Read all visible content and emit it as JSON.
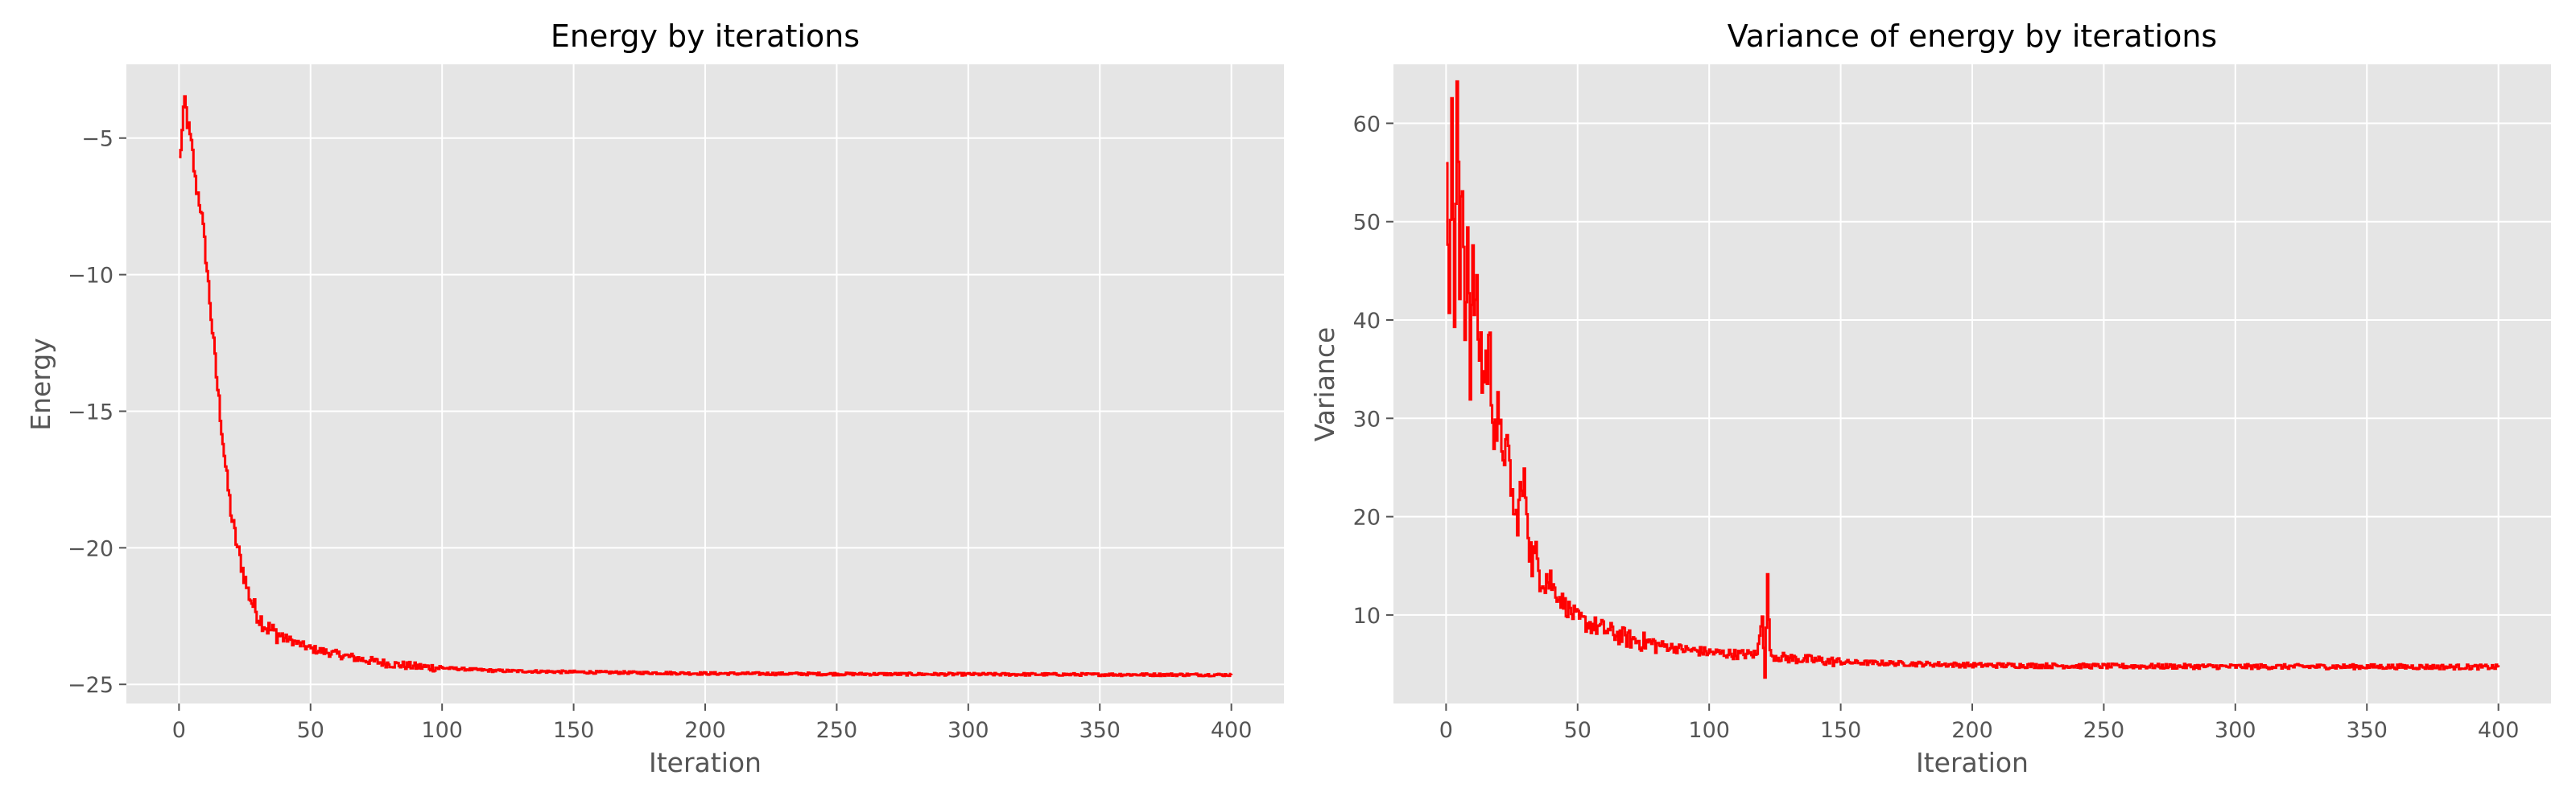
{
  "colors": {
    "panel_bg": "#e5e5e5",
    "grid": "#ffffff",
    "line": "#ff0000",
    "tick_text": "#555555"
  },
  "chart_data": [
    {
      "type": "line",
      "title": "Energy by iterations",
      "xlabel": "Iteration",
      "ylabel": "Energy",
      "xlim": [
        -20,
        420
      ],
      "ylim": [
        -25.7,
        -2.3
      ],
      "xticks": [
        0,
        50,
        100,
        150,
        200,
        250,
        300,
        350,
        400
      ],
      "yticks": [
        -25,
        -20,
        -15,
        -10,
        -5
      ],
      "xtick_labels": [
        "0",
        "50",
        "100",
        "150",
        "200",
        "250",
        "300",
        "350",
        "400"
      ],
      "ytick_labels": [
        "−25",
        "−20",
        "−15",
        "−10",
        "−5"
      ],
      "grid": true,
      "series": [
        {
          "color": "#ff0000",
          "x": [
            0,
            1,
            2,
            3,
            4,
            5,
            6,
            8,
            10,
            12,
            14,
            16,
            18,
            20,
            22,
            24,
            26,
            28,
            30,
            33,
            36,
            40,
            45,
            50,
            55,
            60,
            65,
            70,
            80,
            90,
            100,
            120,
            150,
            200,
            250,
            300,
            350,
            400
          ],
          "y": [
            -5.8,
            -4.8,
            -3.6,
            -4.4,
            -5.0,
            -5.6,
            -6.6,
            -7.5,
            -9.3,
            -11.5,
            -13.7,
            -15.6,
            -17.5,
            -19.0,
            -20.0,
            -20.8,
            -21.6,
            -22.1,
            -22.5,
            -22.9,
            -23.1,
            -23.3,
            -23.5,
            -23.7,
            -23.8,
            -23.9,
            -24.0,
            -24.1,
            -24.25,
            -24.35,
            -24.4,
            -24.5,
            -24.55,
            -24.6,
            -24.62,
            -24.63,
            -24.64,
            -24.65
          ]
        }
      ]
    },
    {
      "type": "line",
      "title": "Variance of energy by iterations",
      "xlabel": "Iteration",
      "ylabel": "Variance",
      "xlim": [
        -20,
        420
      ],
      "ylim": [
        1,
        66
      ],
      "xticks": [
        0,
        50,
        100,
        150,
        200,
        250,
        300,
        350,
        400
      ],
      "yticks": [
        10,
        20,
        30,
        40,
        50,
        60
      ],
      "xtick_labels": [
        "0",
        "50",
        "100",
        "150",
        "200",
        "250",
        "300",
        "350",
        "400"
      ],
      "ytick_labels": [
        "10",
        "20",
        "30",
        "40",
        "50",
        "60"
      ],
      "grid": true,
      "series": [
        {
          "color": "#ff0000",
          "x": [
            0,
            1,
            2,
            3,
            4,
            5,
            6,
            7,
            8,
            9,
            10,
            12,
            14,
            16,
            18,
            20,
            22,
            24,
            26,
            28,
            30,
            32,
            35,
            38,
            40,
            45,
            50,
            55,
            60,
            65,
            70,
            80,
            90,
            100,
            110,
            118,
            120,
            121,
            122,
            123,
            125,
            130,
            150,
            200,
            250,
            300,
            350,
            400
          ],
          "y": [
            58,
            45,
            59,
            42,
            63,
            43,
            54,
            40,
            50,
            36,
            44,
            39,
            34,
            37,
            31,
            28,
            27,
            25,
            19,
            22,
            23,
            16,
            15,
            14,
            13,
            11,
            9.5,
            9,
            8.5,
            8,
            7.5,
            7,
            6.5,
            6.2,
            6.0,
            6.0,
            10,
            3.5,
            14,
            6,
            5.8,
            5.6,
            5.2,
            4.9,
            4.8,
            4.75,
            4.75,
            4.7
          ]
        }
      ]
    }
  ]
}
